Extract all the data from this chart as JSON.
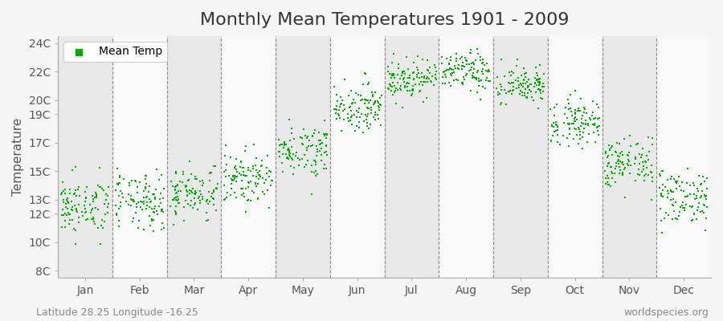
{
  "title": "Monthly Mean Temperatures 1901 - 2009",
  "ylabel": "Temperature",
  "footer_left": "Latitude 28.25 Longitude -16.25",
  "footer_right": "worldspecies.org",
  "legend_label": "Mean Temp",
  "marker_color": "#00aa00",
  "bg_color": "#f0f0f0",
  "band_colors": [
    "#e8e8e8",
    "#f8f8f8"
  ],
  "yticks": [
    8,
    10,
    12,
    13,
    15,
    17,
    19,
    20,
    22,
    24
  ],
  "ytick_labels": [
    "8C",
    "10C",
    "12C",
    "13C",
    "15C",
    "17C",
    "19C",
    "20C",
    "22C",
    "24C"
  ],
  "ylim": [
    7.5,
    24.5
  ],
  "months": [
    "Jan",
    "Feb",
    "Mar",
    "Apr",
    "May",
    "Jun",
    "Jul",
    "Aug",
    "Sep",
    "Oct",
    "Nov",
    "Dec"
  ],
  "monthly_mean": [
    12.5,
    12.8,
    13.5,
    14.5,
    16.5,
    19.5,
    21.5,
    22.0,
    21.0,
    18.5,
    15.5,
    13.2
  ],
  "monthly_std": [
    1.0,
    1.0,
    0.9,
    0.9,
    0.9,
    0.8,
    0.7,
    0.7,
    0.7,
    0.8,
    0.9,
    1.0
  ],
  "n_years": 109,
  "seed": 42,
  "title_fontsize": 16,
  "axis_fontsize": 11,
  "tick_fontsize": 10,
  "footer_fontsize": 9,
  "marker_size": 4
}
